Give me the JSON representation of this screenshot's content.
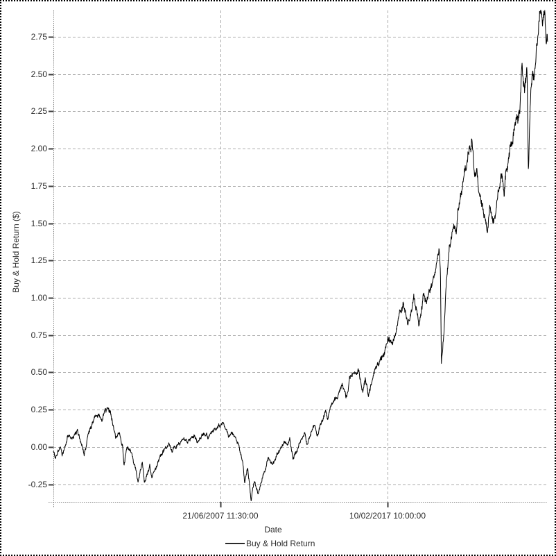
{
  "colors": {
    "line": "#000000",
    "grid": "#aaaaaa",
    "axis": "#808080",
    "tick": "#3c3c3c",
    "text": "#2b2b2b",
    "background": "#ffffff",
    "frame_border": "#000000"
  },
  "chart_data": {
    "type": "line",
    "title": "",
    "xlabel": "Date",
    "ylabel": "Buy & Hold Return ($)",
    "legend_position": "bottom",
    "grid": true,
    "ylim": [
      -0.368,
      2.927
    ],
    "yticks": [
      -0.25,
      0.0,
      0.25,
      0.5,
      0.75,
      1.0,
      1.25,
      1.5,
      1.75,
      2.0,
      2.25,
      2.5,
      2.75
    ],
    "ytick_labels": [
      "-0.25",
      "0.00",
      "0.25",
      "0.50",
      "0.75",
      "1.00",
      "1.25",
      "1.50",
      "1.75",
      "2.00",
      "2.25",
      "2.50",
      "2.75"
    ],
    "xticks": [
      {
        "pos": 0.338,
        "label": "21/06/2007 11:30:00"
      },
      {
        "pos": 0.676,
        "label": "10/02/2017 10:00:00"
      }
    ],
    "x_unit": "fraction of x-axis span (dates, approx. late-1997 to 2026)",
    "series": [
      {
        "name": "Buy & Hold Return",
        "color": "#000000",
        "anchor_points": [
          [
            0.0,
            -0.03
          ],
          [
            0.004,
            -0.07
          ],
          [
            0.014,
            0.0
          ],
          [
            0.018,
            -0.06
          ],
          [
            0.029,
            0.09
          ],
          [
            0.038,
            0.05
          ],
          [
            0.049,
            0.1
          ],
          [
            0.058,
            0.0
          ],
          [
            0.062,
            -0.05
          ],
          [
            0.07,
            0.08
          ],
          [
            0.079,
            0.16
          ],
          [
            0.088,
            0.22
          ],
          [
            0.098,
            0.19
          ],
          [
            0.105,
            0.24
          ],
          [
            0.112,
            0.255
          ],
          [
            0.119,
            0.19
          ],
          [
            0.126,
            0.065
          ],
          [
            0.133,
            0.11
          ],
          [
            0.14,
            0.01
          ],
          [
            0.143,
            -0.12
          ],
          [
            0.149,
            0.0
          ],
          [
            0.158,
            -0.04
          ],
          [
            0.167,
            -0.15
          ],
          [
            0.171,
            -0.23
          ],
          [
            0.18,
            -0.1
          ],
          [
            0.184,
            -0.24
          ],
          [
            0.191,
            -0.16
          ],
          [
            0.195,
            -0.12
          ],
          [
            0.199,
            -0.21
          ],
          [
            0.212,
            -0.1
          ],
          [
            0.219,
            -0.05
          ],
          [
            0.229,
            0.0
          ],
          [
            0.234,
            0.03
          ],
          [
            0.24,
            -0.03
          ],
          [
            0.247,
            0.0
          ],
          [
            0.259,
            0.05
          ],
          [
            0.271,
            0.03
          ],
          [
            0.285,
            0.075
          ],
          [
            0.292,
            0.045
          ],
          [
            0.303,
            0.09
          ],
          [
            0.313,
            0.06
          ],
          [
            0.321,
            0.1
          ],
          [
            0.33,
            0.13
          ],
          [
            0.338,
            0.15
          ],
          [
            0.344,
            0.16
          ],
          [
            0.349,
            0.12
          ],
          [
            0.355,
            0.07
          ],
          [
            0.36,
            0.105
          ],
          [
            0.369,
            0.06
          ],
          [
            0.376,
            0.0
          ],
          [
            0.383,
            -0.1
          ],
          [
            0.387,
            -0.24
          ],
          [
            0.393,
            -0.14
          ],
          [
            0.4,
            -0.35
          ],
          [
            0.407,
            -0.22
          ],
          [
            0.414,
            -0.31
          ],
          [
            0.425,
            -0.18
          ],
          [
            0.435,
            -0.075
          ],
          [
            0.443,
            -0.12
          ],
          [
            0.453,
            -0.05
          ],
          [
            0.46,
            -0.02
          ],
          [
            0.467,
            0.035
          ],
          [
            0.473,
            0.01
          ],
          [
            0.478,
            0.05
          ],
          [
            0.485,
            -0.08
          ],
          [
            0.495,
            0.0
          ],
          [
            0.501,
            0.05
          ],
          [
            0.509,
            0.09
          ],
          [
            0.513,
            0.02
          ],
          [
            0.52,
            0.08
          ],
          [
            0.527,
            0.15
          ],
          [
            0.534,
            0.08
          ],
          [
            0.54,
            0.15
          ],
          [
            0.547,
            0.21
          ],
          [
            0.551,
            0.24
          ],
          [
            0.555,
            0.18
          ],
          [
            0.562,
            0.28
          ],
          [
            0.569,
            0.31
          ],
          [
            0.577,
            0.35
          ],
          [
            0.584,
            0.43
          ],
          [
            0.589,
            0.37
          ],
          [
            0.593,
            0.33
          ],
          [
            0.6,
            0.47
          ],
          [
            0.606,
            0.5
          ],
          [
            0.613,
            0.46
          ],
          [
            0.618,
            0.51
          ],
          [
            0.626,
            0.38
          ],
          [
            0.631,
            0.46
          ],
          [
            0.637,
            0.34
          ],
          [
            0.644,
            0.42
          ],
          [
            0.652,
            0.53
          ],
          [
            0.663,
            0.58
          ],
          [
            0.67,
            0.64
          ],
          [
            0.677,
            0.74
          ],
          [
            0.684,
            0.71
          ],
          [
            0.691,
            0.76
          ],
          [
            0.698,
            0.85
          ],
          [
            0.708,
            0.97
          ],
          [
            0.717,
            0.81
          ],
          [
            0.724,
            0.9
          ],
          [
            0.729,
            1.0
          ],
          [
            0.735,
            0.93
          ],
          [
            0.74,
            0.83
          ],
          [
            0.748,
            1.0
          ],
          [
            0.755,
            0.97
          ],
          [
            0.762,
            1.05
          ],
          [
            0.769,
            1.12
          ],
          [
            0.776,
            1.24
          ],
          [
            0.78,
            1.3
          ],
          [
            0.783,
            1.2
          ],
          [
            0.785,
            0.58
          ],
          [
            0.79,
            0.75
          ],
          [
            0.795,
            1.1
          ],
          [
            0.801,
            1.34
          ],
          [
            0.806,
            1.41
          ],
          [
            0.811,
            1.48
          ],
          [
            0.815,
            1.43
          ],
          [
            0.819,
            1.6
          ],
          [
            0.823,
            1.68
          ],
          [
            0.827,
            1.76
          ],
          [
            0.832,
            1.85
          ],
          [
            0.836,
            1.91
          ],
          [
            0.839,
            1.98
          ],
          [
            0.842,
            2.01
          ],
          [
            0.846,
            2.08
          ],
          [
            0.85,
            1.9
          ],
          [
            0.853,
            1.79
          ],
          [
            0.857,
            1.86
          ],
          [
            0.861,
            1.7
          ],
          [
            0.867,
            1.63
          ],
          [
            0.871,
            1.55
          ],
          [
            0.878,
            1.48
          ],
          [
            0.884,
            1.63
          ],
          [
            0.888,
            1.55
          ],
          [
            0.891,
            1.51
          ],
          [
            0.895,
            1.6
          ],
          [
            0.899,
            1.69
          ],
          [
            0.906,
            1.83
          ],
          [
            0.912,
            1.69
          ],
          [
            0.916,
            1.88
          ],
          [
            0.92,
            1.94
          ],
          [
            0.926,
            2.02
          ],
          [
            0.93,
            2.08
          ],
          [
            0.936,
            2.2
          ],
          [
            0.94,
            2.16
          ],
          [
            0.944,
            2.3
          ],
          [
            0.948,
            2.56
          ],
          [
            0.954,
            2.39
          ],
          [
            0.958,
            2.59
          ],
          [
            0.961,
            1.85
          ],
          [
            0.965,
            2.3
          ],
          [
            0.969,
            2.53
          ],
          [
            0.973,
            2.47
          ],
          [
            0.978,
            2.7
          ],
          [
            0.982,
            2.85
          ],
          [
            0.986,
            2.92
          ],
          [
            0.99,
            2.86
          ],
          [
            0.994,
            2.9
          ],
          [
            0.997,
            2.7
          ],
          [
            1.0,
            2.74
          ]
        ]
      }
    ],
    "render_noise": {
      "description": "dense daily-return fuzz overlaid on anchor path",
      "seed": 20,
      "samples": 2200,
      "base_amplitude": 0.024,
      "value_scaled_amplitude": 0.024
    }
  }
}
